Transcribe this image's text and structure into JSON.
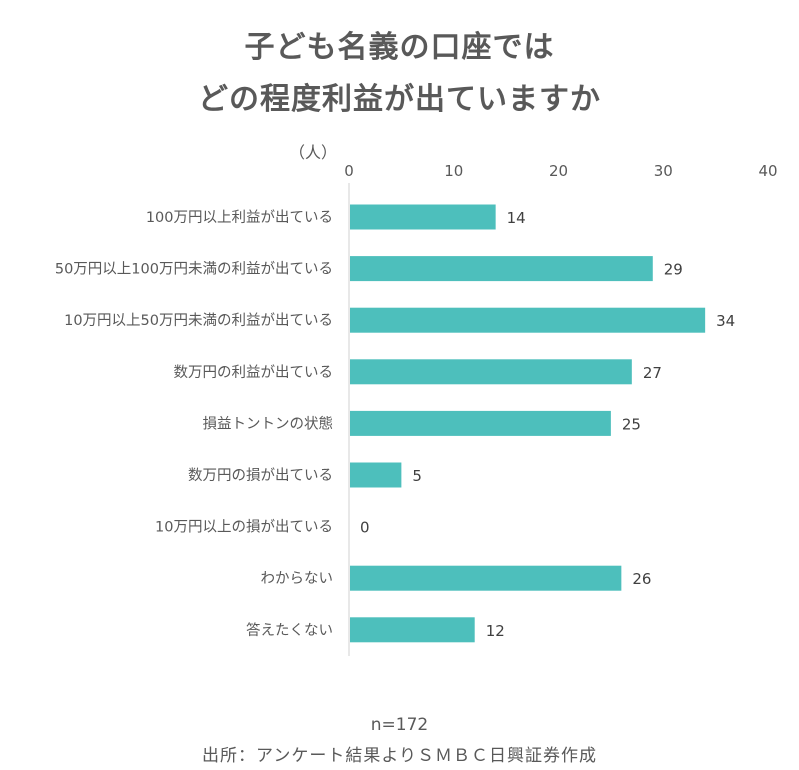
{
  "title_lines": [
    "子ども名義の口座では",
    "どの程度利益が出ていますか"
  ],
  "chart_data": {
    "type": "bar",
    "orientation": "horizontal",
    "categories": [
      "100万円以上利益が出ている",
      "50万円以上100万円未満の利益が出ている",
      "10万円以上50万円未満の利益が出ている",
      "数万円の利益が出ている",
      "損益トントンの状態",
      "数万円の損が出ている",
      "10万円以上の損が出ている",
      "わからない",
      "答えたくない"
    ],
    "values": [
      14,
      29,
      34,
      27,
      25,
      5,
      0,
      26,
      12
    ],
    "unit_label": "（人）",
    "xlim": [
      0,
      40
    ],
    "xticks": [
      0,
      10,
      20,
      30,
      40
    ],
    "tick_labels": [
      "0",
      "10",
      "20",
      "30",
      "40"
    ],
    "axis_position": "top",
    "data_labels": true,
    "grid": false,
    "bar_color": "#4DBFBC"
  },
  "footer": {
    "n": "n=172",
    "source": "出所：アンケート結果よりＳＭＢＣ日興証券作成"
  }
}
